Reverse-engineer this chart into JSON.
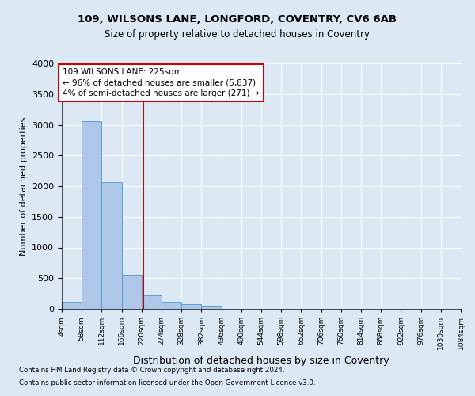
{
  "title1": "109, WILSONS LANE, LONGFORD, COVENTRY, CV6 6AB",
  "title2": "Size of property relative to detached houses in Coventry",
  "xlabel": "Distribution of detached houses by size in Coventry",
  "ylabel": "Number of detached properties",
  "footnote1": "Contains HM Land Registry data © Crown copyright and database right 2024.",
  "footnote2": "Contains public sector information licensed under the Open Government Licence v3.0.",
  "bar_edges": [
    4,
    58,
    112,
    166,
    220,
    274,
    328,
    382,
    436,
    490,
    544,
    598,
    652,
    706,
    760,
    814,
    868,
    922,
    976,
    1030,
    1084
  ],
  "bar_heights": [
    120,
    3060,
    2070,
    560,
    220,
    120,
    80,
    50,
    0,
    0,
    0,
    0,
    0,
    0,
    0,
    0,
    0,
    0,
    0,
    0
  ],
  "bar_color": "#aec6e8",
  "bar_edgecolor": "#5a9fd4",
  "background_color": "#dce9f5",
  "vline_x": 225,
  "vline_color": "#cc0000",
  "ylim": [
    0,
    4000
  ],
  "annotation_line1": "109 WILSONS LANE: 225sqm",
  "annotation_line2": "← 96% of detached houses are smaller (5,837)",
  "annotation_line3": "4% of semi-detached houses are larger (271) →",
  "annotation_box_color": "#cc0000",
  "annotation_text_color": "black",
  "annotation_bg": "white",
  "tick_labels": [
    "4sqm",
    "58sqm",
    "112sqm",
    "166sqm",
    "220sqm",
    "274sqm",
    "328sqm",
    "382sqm",
    "436sqm",
    "490sqm",
    "544sqm",
    "598sqm",
    "652sqm",
    "706sqm",
    "760sqm",
    "814sqm",
    "868sqm",
    "922sqm",
    "976sqm",
    "1030sqm",
    "1084sqm"
  ],
  "yticks": [
    0,
    500,
    1000,
    1500,
    2000,
    2500,
    3000,
    3500,
    4000
  ]
}
